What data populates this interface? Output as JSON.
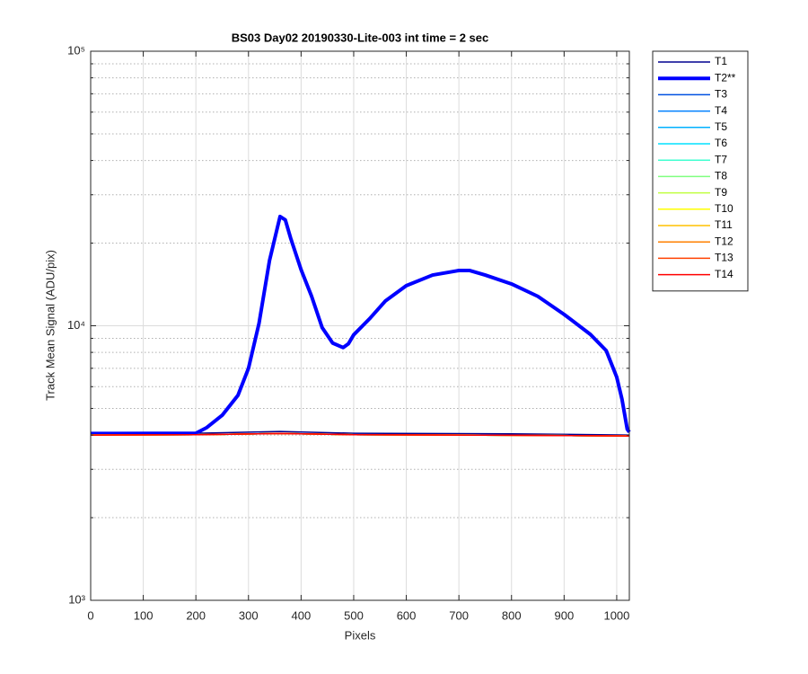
{
  "chart_data": {
    "type": "line",
    "title": "BS03 Day02 20190330-Lite-003 int time = 2 sec",
    "x_label": "Pixels",
    "y_label": "Track Mean Signal (ADU/pix)",
    "log_y": true,
    "grid": true,
    "minor_grid": true,
    "legend": "outside-right",
    "xlim": [
      0,
      1024
    ],
    "xticks": [
      0,
      100,
      200,
      300,
      400,
      500,
      600,
      700,
      800,
      900,
      1000
    ],
    "ylim": [
      1000,
      100000
    ],
    "yticks": [
      {
        "value": 1000,
        "label": "10³"
      },
      {
        "value": 10000,
        "label": "10⁴"
      },
      {
        "value": 100000,
        "label": "10⁵"
      }
    ],
    "series": [
      {
        "name": "T1",
        "color": "#00008f",
        "line_width": 1.5,
        "x": [
          0,
          200,
          360,
          500,
          800,
          1024
        ],
        "values": [
          4050,
          4060,
          4120,
          4060,
          4040,
          4000
        ]
      },
      {
        "name": "T2**",
        "color": "#0000ff",
        "line_width": 4,
        "x": [
          0,
          200,
          220,
          250,
          280,
          300,
          320,
          340,
          360,
          370,
          380,
          400,
          420,
          440,
          460,
          480,
          490,
          500,
          530,
          560,
          600,
          650,
          700,
          720,
          750,
          800,
          850,
          900,
          950,
          980,
          1000,
          1010,
          1020,
          1024
        ],
        "values": [
          4050,
          4060,
          4250,
          4720,
          5580,
          7000,
          10200,
          17300,
          25000,
          24300,
          20900,
          16000,
          12800,
          9850,
          8650,
          8330,
          8600,
          9270,
          10600,
          12300,
          14000,
          15300,
          15900,
          15900,
          15300,
          14200,
          12800,
          11000,
          9300,
          8120,
          6500,
          5400,
          4200,
          4100
        ]
      },
      {
        "name": "T3",
        "color": "#0050e0",
        "line_width": 1.5,
        "x": [
          0,
          200,
          360,
          500,
          800,
          1024
        ],
        "values": [
          4000,
          4010,
          4050,
          4010,
          3990,
          3970
        ]
      },
      {
        "name": "T4",
        "color": "#0080ff",
        "line_width": 1.5,
        "x": [
          0,
          200,
          360,
          500,
          800,
          1024
        ],
        "values": [
          4000,
          4010,
          4050,
          4010,
          3990,
          3970
        ]
      },
      {
        "name": "T5",
        "color": "#00b0ff",
        "line_width": 1.5,
        "x": [
          0,
          200,
          360,
          500,
          800,
          1024
        ],
        "values": [
          4000,
          4010,
          4050,
          4010,
          3990,
          3970
        ]
      },
      {
        "name": "T6",
        "color": "#00e0ff",
        "line_width": 1.5,
        "x": [
          0,
          200,
          360,
          500,
          800,
          1024
        ],
        "values": [
          4000,
          4010,
          4050,
          4010,
          3990,
          3970
        ]
      },
      {
        "name": "T7",
        "color": "#40ffd0",
        "line_width": 1.5,
        "x": [
          0,
          200,
          360,
          500,
          800,
          1024
        ],
        "values": [
          4000,
          4010,
          4050,
          4010,
          3990,
          3970
        ]
      },
      {
        "name": "T8",
        "color": "#80ff80",
        "line_width": 1.5,
        "x": [
          0,
          200,
          360,
          500,
          800,
          1024
        ],
        "values": [
          4000,
          4010,
          4050,
          4010,
          3990,
          3970
        ]
      },
      {
        "name": "T9",
        "color": "#c0ff40",
        "line_width": 1.5,
        "x": [
          0,
          200,
          360,
          500,
          800,
          1024
        ],
        "values": [
          4000,
          4010,
          4050,
          4010,
          3990,
          3970
        ]
      },
      {
        "name": "T10",
        "color": "#ffff00",
        "line_width": 1.5,
        "x": [
          0,
          200,
          360,
          500,
          800,
          1024
        ],
        "values": [
          4000,
          4010,
          4050,
          4010,
          3990,
          3970
        ]
      },
      {
        "name": "T11",
        "color": "#ffc000",
        "line_width": 1.5,
        "x": [
          0,
          200,
          360,
          500,
          800,
          1024
        ],
        "values": [
          4000,
          4010,
          4050,
          4010,
          3990,
          3970
        ]
      },
      {
        "name": "T12",
        "color": "#ff8000",
        "line_width": 1.5,
        "x": [
          0,
          200,
          360,
          500,
          800,
          1024
        ],
        "values": [
          4000,
          4010,
          4050,
          4010,
          3990,
          3970
        ]
      },
      {
        "name": "T13",
        "color": "#ff4000",
        "line_width": 1.5,
        "x": [
          0,
          200,
          360,
          500,
          800,
          1024
        ],
        "values": [
          4000,
          4010,
          4050,
          4010,
          3990,
          3970
        ]
      },
      {
        "name": "T14",
        "color": "#ff0000",
        "line_width": 1.5,
        "x": [
          0,
          200,
          360,
          500,
          800,
          1024
        ],
        "values": [
          4000,
          4010,
          4050,
          4010,
          3990,
          3970
        ]
      }
    ]
  }
}
